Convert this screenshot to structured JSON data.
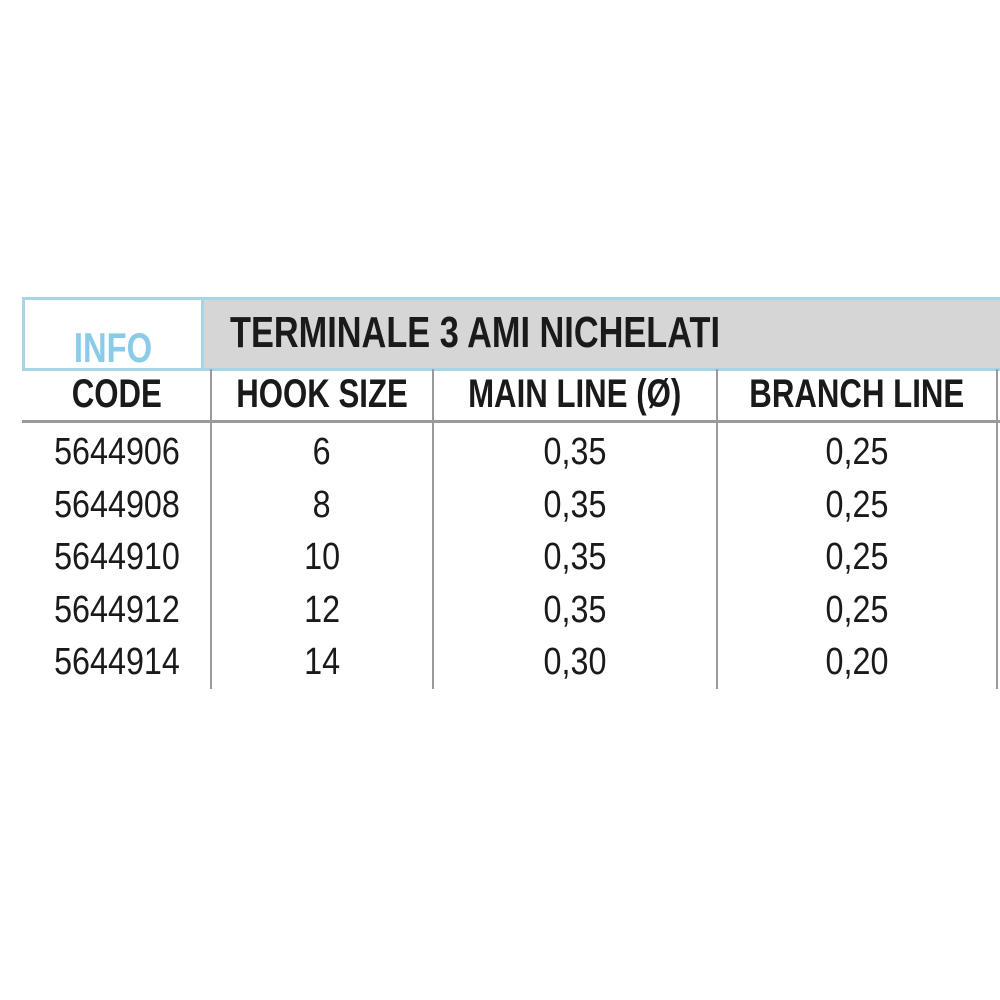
{
  "info_label": "INFO",
  "title": "TERMINALE 3 AMI NICHELATI",
  "colors": {
    "info_blue": "#8ccbe8",
    "border_blue": "#a9d4e6",
    "band_grey": "#d6d6d6"
  },
  "headers": [
    "CODE",
    "HOOK SIZE",
    "MAIN LINE (Ø)",
    "BRANCH LINE"
  ],
  "rows": [
    [
      "5644906",
      "6",
      "0,35",
      "0,25"
    ],
    [
      "5644908",
      "8",
      "0,35",
      "0,25"
    ],
    [
      "5644910",
      "10",
      "0,35",
      "0,25"
    ],
    [
      "5644912",
      "12",
      "0,35",
      "0,25"
    ],
    [
      "5644914",
      "14",
      "0,30",
      "0,20"
    ]
  ]
}
